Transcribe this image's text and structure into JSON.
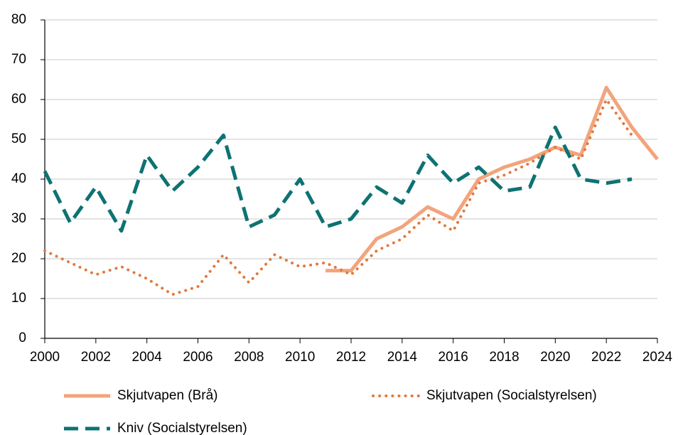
{
  "chart_data": {
    "type": "line",
    "x": [
      2000,
      2001,
      2002,
      2003,
      2004,
      2005,
      2006,
      2007,
      2008,
      2009,
      2010,
      2011,
      2012,
      2013,
      2014,
      2015,
      2016,
      2017,
      2018,
      2019,
      2020,
      2021,
      2022,
      2023,
      2024
    ],
    "series": [
      {
        "name": "Skjutvapen (Brå)",
        "color": "#f2a47c",
        "style": "solid",
        "values": [
          null,
          null,
          null,
          null,
          null,
          null,
          null,
          null,
          null,
          null,
          null,
          17,
          17,
          25,
          28,
          33,
          30,
          40,
          43,
          45,
          48,
          46,
          63,
          53,
          45
        ]
      },
      {
        "name": "Skjutvapen (Socialstyrelsen)",
        "color": "#e07a3e",
        "style": "dotted",
        "values": [
          22,
          19,
          16,
          18,
          15,
          11,
          13,
          21,
          14,
          21,
          18,
          19,
          16,
          22,
          25,
          31,
          27,
          39,
          41,
          44,
          48,
          45,
          60,
          51,
          null
        ]
      },
      {
        "name": "Kniv (Socialstyrelsen)",
        "color": "#0e7272",
        "style": "dashed",
        "values": [
          42,
          29,
          38,
          27,
          46,
          37,
          43,
          51,
          28,
          31,
          40,
          28,
          30,
          38,
          34,
          46,
          39,
          43,
          37,
          38,
          53,
          40,
          39,
          40,
          null
        ]
      }
    ],
    "xlim": [
      2000,
      2024
    ],
    "xticks": [
      2000,
      2002,
      2004,
      2006,
      2008,
      2010,
      2012,
      2014,
      2016,
      2018,
      2020,
      2022,
      2024
    ],
    "ylim": [
      0,
      80
    ],
    "yticks": [
      0,
      10,
      20,
      30,
      40,
      50,
      60,
      70,
      80
    ],
    "grid": true,
    "legend": "bottom"
  }
}
